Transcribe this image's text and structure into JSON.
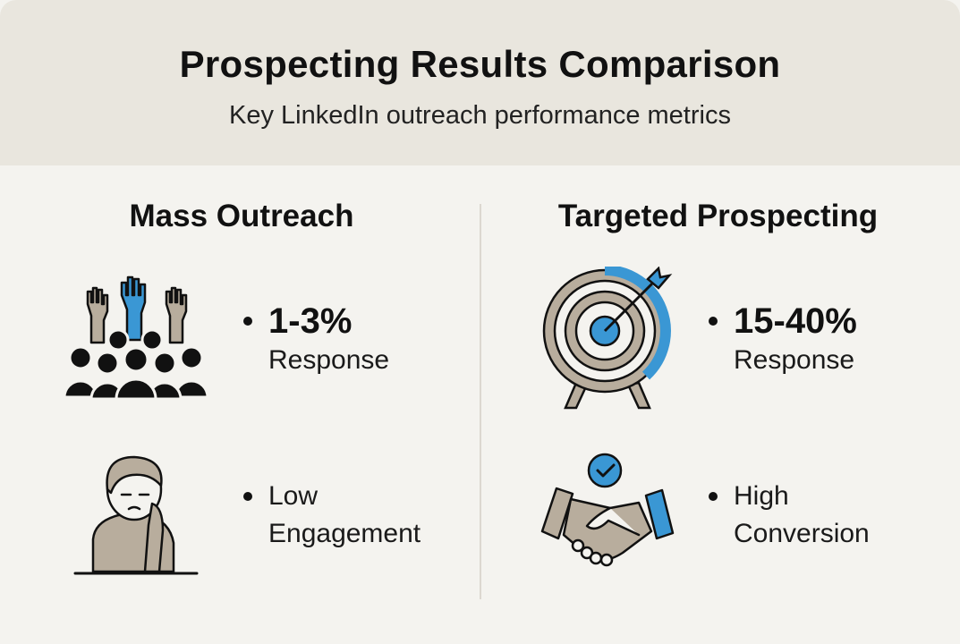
{
  "header": {
    "title": "Prospecting Results Comparison",
    "subtitle": "Key LinkedIn outreach performance metrics"
  },
  "columns": [
    {
      "title": "Mass Outreach",
      "metrics": [
        {
          "icon": "crowd-raised-hands-icon",
          "value": "1-3%",
          "label": "Response"
        },
        {
          "icon": "bored-person-icon",
          "line1": "Low",
          "line2": "Engagement"
        }
      ]
    },
    {
      "title": "Targeted Prospecting",
      "metrics": [
        {
          "icon": "target-arrow-icon",
          "value": "15-40%",
          "label": "Response"
        },
        {
          "icon": "handshake-check-icon",
          "line1": "High",
          "line2": "Conversion"
        }
      ]
    }
  ],
  "colors": {
    "accent": "#3a97d4",
    "neutral": "#b8ad9d",
    "header_bg": "#e9e6de",
    "background": "#f4f3ef"
  }
}
